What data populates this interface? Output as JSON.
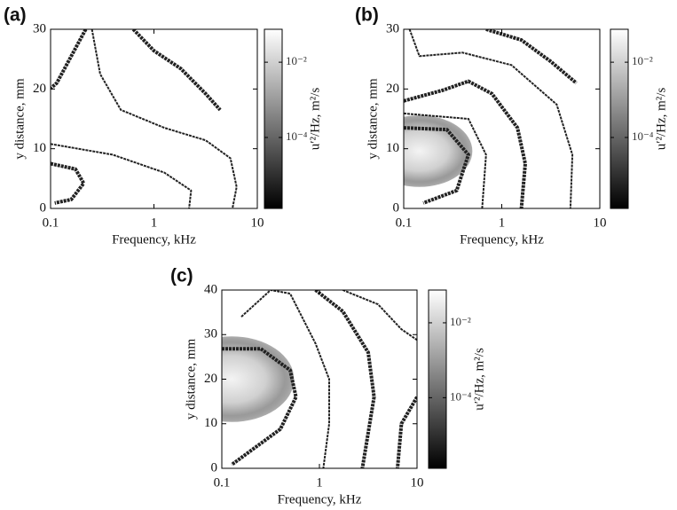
{
  "chart_data": [
    {
      "type": "contour",
      "panel_label": "(a)",
      "xlabel": "Frequency, kHz",
      "ylabel": "y distance, mm",
      "xscale": "log",
      "xlim": [
        0.1,
        10
      ],
      "xticks": [
        0.1,
        1,
        10
      ],
      "ylim": [
        0,
        30
      ],
      "yticks": [
        0,
        10,
        20,
        30
      ],
      "grid": false,
      "colorbar": {
        "label": "u′²/Hz, m²/s",
        "scale": "log",
        "lim": [
          1.3e-06,
          0.075
        ],
        "ticks": [
          {
            "value": 0.01,
            "label": "10⁻²"
          },
          {
            "value": 0.0001,
            "label": "10⁻⁴"
          }
        ]
      }
    },
    {
      "type": "contour",
      "panel_label": "(b)",
      "xlabel": "Frequency, kHz",
      "ylabel": "y distance, mm",
      "xscale": "log",
      "xlim": [
        0.1,
        10
      ],
      "xticks": [
        0.1,
        1,
        10
      ],
      "ylim": [
        0,
        30
      ],
      "yticks": [
        0,
        10,
        20,
        30
      ],
      "grid": false,
      "colorbar": {
        "label": "u′²/Hz, m²/s",
        "scale": "log",
        "lim": [
          1.3e-06,
          0.075
        ],
        "ticks": [
          {
            "value": 0.01,
            "label": "10⁻²"
          },
          {
            "value": 0.0001,
            "label": "10⁻⁴"
          }
        ]
      }
    },
    {
      "type": "contour",
      "panel_label": "(c)",
      "xlabel": "Frequency, kHz",
      "ylabel": "y distance, mm",
      "xscale": "log",
      "xlim": [
        0.1,
        10
      ],
      "xticks": [
        0.1,
        1,
        10
      ],
      "ylim": [
        0,
        40
      ],
      "yticks": [
        0,
        10,
        20,
        30,
        40
      ],
      "grid": false,
      "colorbar": {
        "label": "u′²/Hz, m²/s",
        "scale": "log",
        "lim": [
          1.3e-06,
          0.075
        ],
        "ticks": [
          {
            "value": 0.01,
            "label": "10⁻²"
          },
          {
            "value": 0.0001,
            "label": "10⁻⁴"
          }
        ]
      }
    }
  ]
}
